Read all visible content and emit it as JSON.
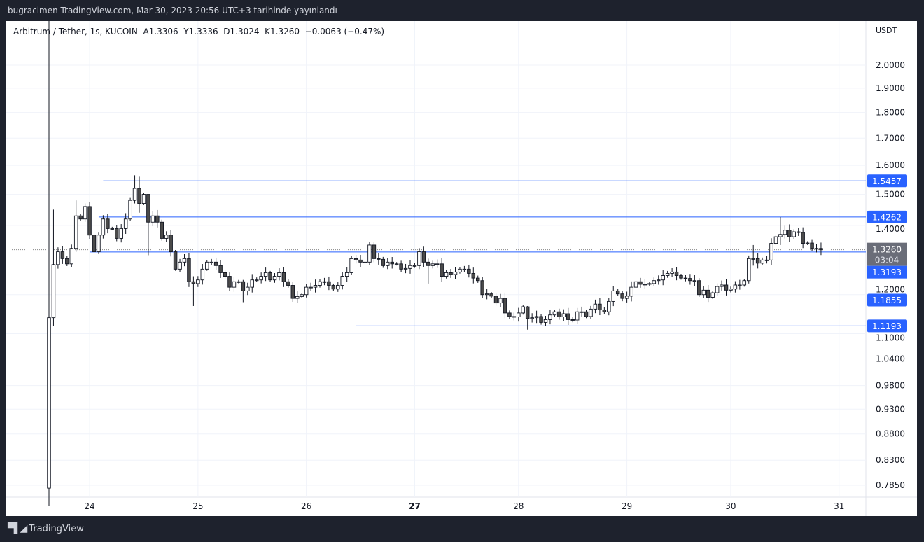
{
  "header": {
    "published_line": "bugracimen TradingView.com, Mar 30, 2023 20:56 UTC+3 tarihinde yayınlandı"
  },
  "legend": {
    "symbol": "Arbitrum / Tether, 1s, KUCOIN",
    "open": "A1.3306",
    "high": "Y1.3336",
    "low": "D1.3024",
    "close": "K1.3260",
    "change": "−0.0063 (−0.47%)"
  },
  "footer": {
    "brand": "TradingView",
    "logo_text": "TV"
  },
  "colors": {
    "level_line": "#2962ff",
    "bear_body": "#4a4a4a",
    "bull_body": "#ffffff",
    "price_label_bg": "#6a6d78"
  },
  "chart_data": {
    "type": "candlestick",
    "scale": "log",
    "currency": "USDT",
    "ylim": [
      0.785,
      2.0
    ],
    "interval": "1 hour",
    "x_ticks": [
      {
        "label": "24",
        "index": 9
      },
      {
        "label": "25",
        "index": 33
      },
      {
        "label": "26",
        "index": 57
      },
      {
        "label": "27",
        "index": 81,
        "bold": true
      },
      {
        "label": "28",
        "index": 104
      },
      {
        "label": "29",
        "index": 128
      },
      {
        "label": "30",
        "index": 151
      },
      {
        "label": "31",
        "index": 175
      }
    ],
    "y_ticks": [
      "2.0000",
      "1.9000",
      "1.8000",
      "1.7000",
      "1.6000",
      "1.5000",
      "1.4000",
      "1.2000",
      "1.1000",
      "1.0400",
      "0.9800",
      "0.9300",
      "0.8800",
      "0.8300",
      "0.7850"
    ],
    "first_open": 0.78,
    "closes": [
      1.14,
      1.283,
      1.32,
      1.3,
      1.285,
      1.33,
      1.43,
      1.42,
      1.46,
      1.37,
      1.32,
      1.37,
      1.42,
      1.39,
      1.39,
      1.36,
      1.39,
      1.42,
      1.48,
      1.52,
      1.47,
      1.5,
      1.41,
      1.43,
      1.41,
      1.36,
      1.37,
      1.32,
      1.27,
      1.29,
      1.3,
      1.235,
      1.23,
      1.24,
      1.27,
      1.29,
      1.29,
      1.28,
      1.26,
      1.25,
      1.22,
      1.235,
      1.235,
      1.21,
      1.22,
      1.24,
      1.24,
      1.25,
      1.26,
      1.24,
      1.25,
      1.26,
      1.235,
      1.225,
      1.19,
      1.195,
      1.2,
      1.22,
      1.22,
      1.225,
      1.235,
      1.235,
      1.225,
      1.215,
      1.225,
      1.25,
      1.26,
      1.3,
      1.296,
      1.29,
      1.29,
      1.34,
      1.3,
      1.298,
      1.28,
      1.29,
      1.285,
      1.285,
      1.27,
      1.272,
      1.28,
      1.28,
      1.32,
      1.29,
      1.28,
      1.285,
      1.285,
      1.25,
      1.26,
      1.255,
      1.262,
      1.27,
      1.27,
      1.258,
      1.245,
      1.238,
      1.2,
      1.202,
      1.196,
      1.178,
      1.19,
      1.152,
      1.143,
      1.142,
      1.152,
      1.168,
      1.138,
      1.14,
      1.143,
      1.128,
      1.135,
      1.147,
      1.155,
      1.142,
      1.15,
      1.135,
      1.134,
      1.155,
      1.155,
      1.143,
      1.162,
      1.175,
      1.16,
      1.155,
      1.182,
      1.21,
      1.202,
      1.19,
      1.196,
      1.22,
      1.235,
      1.228,
      1.228,
      1.23,
      1.238,
      1.24,
      1.252,
      1.258,
      1.262,
      1.252,
      1.245,
      1.244,
      1.238,
      1.238,
      1.2,
      1.212,
      1.193,
      1.205,
      1.222,
      1.226,
      1.212,
      1.215,
      1.226,
      1.226,
      1.238,
      1.3,
      1.3,
      1.287,
      1.296,
      1.296,
      1.345,
      1.365,
      1.372,
      1.385,
      1.365,
      1.38,
      1.378,
      1.345,
      1.346,
      1.33,
      1.33,
      1.326
    ],
    "wick_overrides": [
      {
        "index": 0,
        "high": 1.16,
        "low": 0.75
      },
      {
        "index": 1,
        "high": 1.45,
        "low": 1.12
      },
      {
        "index": 6,
        "high": 1.48,
        "low": 1.32
      },
      {
        "index": 19,
        "high": 1.565,
        "low": 1.47
      },
      {
        "index": 20,
        "high": 1.56,
        "low": 1.44
      },
      {
        "index": 22,
        "high": 1.5,
        "low": 1.31
      },
      {
        "index": 32,
        "high": 1.25,
        "low": 1.17
      },
      {
        "index": 43,
        "high": 1.24,
        "low": 1.18
      },
      {
        "index": 72,
        "high": 1.35,
        "low": 1.29
      },
      {
        "index": 84,
        "high": 1.3,
        "low": 1.23
      },
      {
        "index": 106,
        "high": 1.17,
        "low": 1.11
      },
      {
        "index": 156,
        "high": 1.34,
        "low": 1.28
      },
      {
        "index": 162,
        "high": 1.426,
        "low": 1.34
      }
    ],
    "levels": [
      {
        "price": 1.5457,
        "label": "1.5457",
        "start_index": 12
      },
      {
        "price": 1.4262,
        "label": "1.4262",
        "start_index": 11
      },
      {
        "price": 1.3193,
        "label": "1.3193",
        "start_index": 9
      },
      {
        "price": 1.1855,
        "label": "1.1855",
        "start_index": 22
      },
      {
        "price": 1.1193,
        "label": "1.1193",
        "start_index": 68
      }
    ],
    "last_price": {
      "price": 1.326,
      "label": "1.3260",
      "countdown": "03:04"
    }
  }
}
